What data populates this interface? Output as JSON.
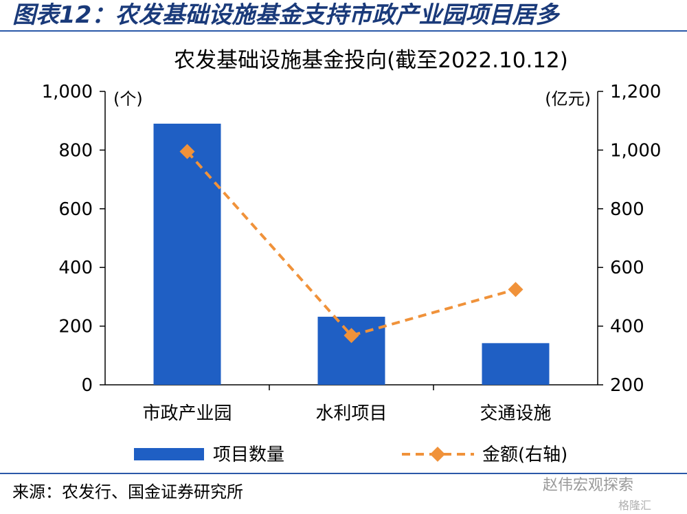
{
  "header": {
    "figure_title": "图表12：农发基础设施基金支持市政产业园项目居多"
  },
  "footer": {
    "source": "来源：农发行、国金证券研究所",
    "watermark": "赵伟宏观探索",
    "watermark_logo": "格隆汇"
  },
  "colors": {
    "bar": "#1f5fc4",
    "line": "#f0923a",
    "axis": "#000000",
    "header_rule": "#2a58a8"
  },
  "chart_data": {
    "type": "bar+line",
    "title": "农发基础设施基金投向(截至2022.10.12)",
    "categories": [
      "市政产业园",
      "水利项目",
      "交通设施"
    ],
    "series": [
      {
        "name": "项目数量",
        "type": "bar",
        "axis": "left",
        "values": [
          890,
          232,
          142
        ]
      },
      {
        "name": "金额(右轴)",
        "type": "line",
        "axis": "right",
        "values": [
          995,
          368,
          525
        ]
      }
    ],
    "left_axis": {
      "unit": "(个)",
      "ylim": [
        0,
        1000
      ],
      "ticks": [
        0,
        200,
        400,
        600,
        800,
        1000
      ],
      "tick_labels": [
        "0",
        "200",
        "400",
        "600",
        "800",
        "1,000"
      ]
    },
    "right_axis": {
      "unit": "(亿元)",
      "ylim": [
        200,
        1200
      ],
      "ticks": [
        200,
        400,
        600,
        800,
        1000,
        1200
      ],
      "tick_labels": [
        "200",
        "400",
        "600",
        "800",
        "1,000",
        "1,200"
      ]
    },
    "grid": false,
    "legend_position": "bottom"
  }
}
